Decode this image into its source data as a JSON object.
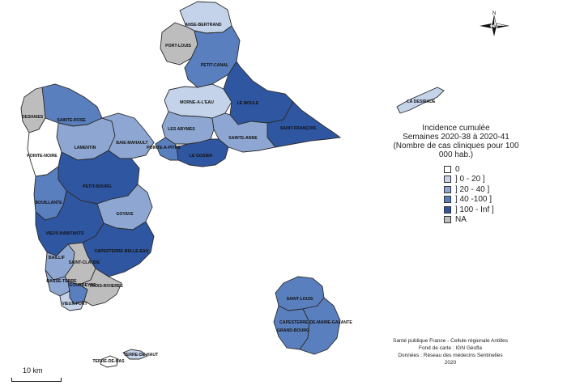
{
  "legend": {
    "title_line1": "Incidence cumulée",
    "title_line2": "Semaines 2020-38 à 2020-41",
    "title_line3": "(Nombre de cas cliniques pour 100 000 hab.)",
    "classes": [
      {
        "label": "0",
        "color": "#ffffff"
      },
      {
        "label": "] 0 - 20 ]",
        "color": "#c5d3ea"
      },
      {
        "label": "] 20 - 40 ]",
        "color": "#8ea7d2"
      },
      {
        "label": "] 40 -100 ]",
        "color": "#5a7fbe"
      },
      {
        "label": "] 100 - Inf ]",
        "color": "#2f56a0"
      },
      {
        "label": "NA",
        "color": "#bdbdbd"
      }
    ]
  },
  "credits": {
    "line1": "Santé publique France - Cellule régionale Antilles",
    "line2": "Fond de carte : IGN Géofla",
    "line3": "Données : Réseau des médecins Sentinelles",
    "line4": "2020"
  },
  "scale": {
    "label": "10 km"
  },
  "north": {
    "label": "N",
    "icon": "compass-rose-icon"
  },
  "communes": {
    "anse_bertrand": {
      "name": "ANSE-BERTRAND",
      "class": 1
    },
    "port_louis": {
      "name": "PORT-LOUIS",
      "class": 5
    },
    "petit_canal": {
      "name": "PETIT-CANAL",
      "class": 3
    },
    "morne_a_l_eau": {
      "name": "MORNE-A-L'EAU",
      "class": 1
    },
    "le_moule": {
      "name": "LE MOULE",
      "class": 4
    },
    "les_abymes": {
      "name": "LES ABYMES",
      "class": 2
    },
    "saint_francois": {
      "name": "SAINT-FRANÇOIS",
      "class": 4
    },
    "sainte_anne": {
      "name": "SAINTE-ANNE",
      "class": 2
    },
    "le_gosier": {
      "name": "LE GOSIER",
      "class": 4
    },
    "pointe_a_pitre": {
      "name": "POINTE-A-PITRE",
      "class": 3
    },
    "la_desirade": {
      "name": "LA DESIRADE",
      "class": 1
    },
    "deshaies": {
      "name": "DESHAIES",
      "class": 5
    },
    "sainte_rose": {
      "name": "SAINTE-ROSE",
      "class": 3
    },
    "lamentin": {
      "name": "LAMENTIN",
      "class": 2
    },
    "baie_mahault": {
      "name": "BAIE-MAHAULT",
      "class": 2
    },
    "pointe_noire": {
      "name": "POINTE-NOIRE",
      "class": 0
    },
    "petit_bourg": {
      "name": "PETIT-BOURG",
      "class": 4
    },
    "bouillante": {
      "name": "BOUILLANTE",
      "class": 3
    },
    "goyave": {
      "name": "GOYAVE",
      "class": 2
    },
    "vieux_habitants": {
      "name": "VIEUX-HABITANTS",
      "class": 4
    },
    "capesterre_belle_eau": {
      "name": "CAPESTERRE-BELLE-EAU",
      "class": 4
    },
    "baillif": {
      "name": "BAILLIF",
      "class": 2
    },
    "saint_claude": {
      "name": "SAINT-CLAUDE",
      "class": 5
    },
    "basse_terre": {
      "name": "BASSE-TERRE",
      "class": 2
    },
    "gourbeyre": {
      "name": "GOURBEYRE",
      "class": 3
    },
    "trois_rivieres": {
      "name": "TROIS-RIVIERES",
      "class": 5
    },
    "vieux_fort": {
      "name": "VIEUX-FORT",
      "class": 1
    },
    "saint_louis": {
      "name": "SAINT-LOUIS",
      "class": 3
    },
    "grand_bourg": {
      "name": "GRAND-BOURG",
      "class": 3
    },
    "capesterre_mg": {
      "name": "CAPESTERRE-DE-MARIE-GALANTE",
      "class": 3
    },
    "terre_de_haut": {
      "name": "TERRE-DE-HAUT",
      "class": 1
    },
    "terre_de_bas": {
      "name": "TERRE-DE-BAS",
      "class": 0
    }
  }
}
